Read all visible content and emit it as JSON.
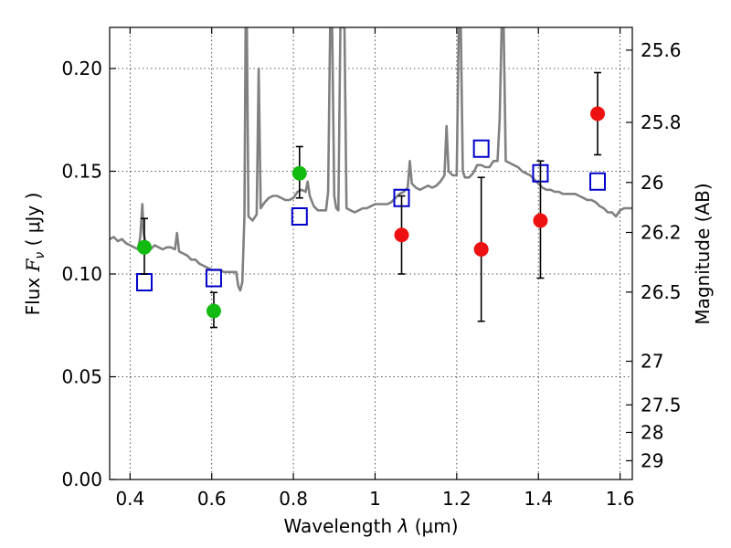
{
  "chart_data": {
    "type": "scatter",
    "xlabel_text": "Wavelength",
    "xlabel_symbol": "λ",
    "xlabel_unit": "(μm)",
    "ylabel_text": "Flux",
    "ylabel_symbol": "F",
    "ylabel_subscript": "ν",
    "ylabel_unit": "( μJy )",
    "y2label": "Magnitude (AB)",
    "xlim": [
      0.35,
      1.63
    ],
    "ylim": [
      0.0,
      0.22
    ],
    "x_ticks": [
      {
        "value": 0.4,
        "label": "0.4"
      },
      {
        "value": 0.6,
        "label": "0.6"
      },
      {
        "value": 0.8,
        "label": "0.8"
      },
      {
        "value": 1.0,
        "label": "1"
      },
      {
        "value": 1.2,
        "label": "1.2"
      },
      {
        "value": 1.4,
        "label": "1.4"
      },
      {
        "value": 1.6,
        "label": "1.6"
      }
    ],
    "y_ticks": [
      {
        "value": 0.0,
        "label": "0.00"
      },
      {
        "value": 0.05,
        "label": "0.05"
      },
      {
        "value": 0.1,
        "label": "0.10"
      },
      {
        "value": 0.15,
        "label": "0.15"
      },
      {
        "value": 0.2,
        "label": "0.20"
      }
    ],
    "y2_ticks": [
      {
        "mag": 25.6,
        "label": "25.6"
      },
      {
        "mag": 25.8,
        "label": "25.8"
      },
      {
        "mag": 26.0,
        "label": "26"
      },
      {
        "mag": 26.2,
        "label": "26.2"
      },
      {
        "mag": 26.5,
        "label": "26.5"
      },
      {
        "mag": 27.0,
        "label": "27"
      },
      {
        "mag": 27.5,
        "label": "27.5"
      },
      {
        "mag": 28.0,
        "label": "28"
      },
      {
        "mag": 29.0,
        "label": "29"
      }
    ],
    "grid": true,
    "series": [
      {
        "kind": "spectrum_line",
        "color": "#808080",
        "points": [
          [
            0.35,
            0.117
          ],
          [
            0.36,
            0.118
          ],
          [
            0.37,
            0.116
          ],
          [
            0.38,
            0.117
          ],
          [
            0.39,
            0.115
          ],
          [
            0.4,
            0.114
          ],
          [
            0.41,
            0.113
          ],
          [
            0.42,
            0.112
          ],
          [
            0.425,
            0.118
          ],
          [
            0.43,
            0.134
          ],
          [
            0.433,
            0.12
          ],
          [
            0.44,
            0.113
          ],
          [
            0.45,
            0.112
          ],
          [
            0.46,
            0.114
          ],
          [
            0.47,
            0.113
          ],
          [
            0.48,
            0.112
          ],
          [
            0.49,
            0.113
          ],
          [
            0.5,
            0.113
          ],
          [
            0.51,
            0.112
          ],
          [
            0.515,
            0.12
          ],
          [
            0.52,
            0.111
          ],
          [
            0.53,
            0.11
          ],
          [
            0.54,
            0.109
          ],
          [
            0.55,
            0.107
          ],
          [
            0.56,
            0.107
          ],
          [
            0.57,
            0.105
          ],
          [
            0.58,
            0.104
          ],
          [
            0.59,
            0.103
          ],
          [
            0.6,
            0.102
          ],
          [
            0.61,
            0.102
          ],
          [
            0.62,
            0.102
          ],
          [
            0.63,
            0.101
          ],
          [
            0.64,
            0.101
          ],
          [
            0.65,
            0.101
          ],
          [
            0.66,
            0.101
          ],
          [
            0.665,
            0.094
          ],
          [
            0.67,
            0.092
          ],
          [
            0.675,
            0.096
          ],
          [
            0.68,
            0.128
          ],
          [
            0.683,
            0.22
          ],
          [
            0.686,
            0.22
          ],
          [
            0.69,
            0.128
          ],
          [
            0.7,
            0.126
          ],
          [
            0.71,
            0.129
          ],
          [
            0.715,
            0.2
          ],
          [
            0.72,
            0.132
          ],
          [
            0.73,
            0.135
          ],
          [
            0.74,
            0.137
          ],
          [
            0.75,
            0.138
          ],
          [
            0.76,
            0.138
          ],
          [
            0.77,
            0.137
          ],
          [
            0.78,
            0.136
          ],
          [
            0.79,
            0.136
          ],
          [
            0.8,
            0.137
          ],
          [
            0.81,
            0.14
          ],
          [
            0.82,
            0.141
          ],
          [
            0.83,
            0.14
          ],
          [
            0.835,
            0.145
          ],
          [
            0.84,
            0.138
          ],
          [
            0.85,
            0.133
          ],
          [
            0.86,
            0.131
          ],
          [
            0.87,
            0.131
          ],
          [
            0.88,
            0.131
          ],
          [
            0.885,
            0.14
          ],
          [
            0.89,
            0.22
          ],
          [
            0.895,
            0.22
          ],
          [
            0.9,
            0.138
          ],
          [
            0.905,
            0.132
          ],
          [
            0.91,
            0.131
          ],
          [
            0.915,
            0.22
          ],
          [
            0.925,
            0.22
          ],
          [
            0.93,
            0.132
          ],
          [
            0.94,
            0.131
          ],
          [
            0.95,
            0.13
          ],
          [
            0.96,
            0.131
          ],
          [
            0.97,
            0.132
          ],
          [
            0.98,
            0.132
          ],
          [
            0.99,
            0.133
          ],
          [
            1.0,
            0.134
          ],
          [
            1.01,
            0.134
          ],
          [
            1.02,
            0.134
          ],
          [
            1.03,
            0.134
          ],
          [
            1.04,
            0.135
          ],
          [
            1.05,
            0.137
          ],
          [
            1.06,
            0.139
          ],
          [
            1.07,
            0.14
          ],
          [
            1.08,
            0.142
          ],
          [
            1.085,
            0.155
          ],
          [
            1.09,
            0.144
          ],
          [
            1.1,
            0.142
          ],
          [
            1.11,
            0.141
          ],
          [
            1.12,
            0.142
          ],
          [
            1.13,
            0.143
          ],
          [
            1.14,
            0.142
          ],
          [
            1.15,
            0.143
          ],
          [
            1.16,
            0.145
          ],
          [
            1.17,
            0.148
          ],
          [
            1.175,
            0.172
          ],
          [
            1.18,
            0.15
          ],
          [
            1.19,
            0.148
          ],
          [
            1.2,
            0.148
          ],
          [
            1.205,
            0.22
          ],
          [
            1.21,
            0.22
          ],
          [
            1.215,
            0.15
          ],
          [
            1.22,
            0.147
          ],
          [
            1.23,
            0.147
          ],
          [
            1.24,
            0.149
          ],
          [
            1.25,
            0.153
          ],
          [
            1.26,
            0.153
          ],
          [
            1.27,
            0.152
          ],
          [
            1.28,
            0.152
          ],
          [
            1.29,
            0.155
          ],
          [
            1.3,
            0.155
          ],
          [
            1.305,
            0.175
          ],
          [
            1.31,
            0.22
          ],
          [
            1.315,
            0.22
          ],
          [
            1.32,
            0.155
          ],
          [
            1.33,
            0.154
          ],
          [
            1.34,
            0.153
          ],
          [
            1.35,
            0.152
          ],
          [
            1.36,
            0.15
          ],
          [
            1.37,
            0.149
          ],
          [
            1.38,
            0.148
          ],
          [
            1.39,
            0.146
          ],
          [
            1.4,
            0.144
          ],
          [
            1.41,
            0.142
          ],
          [
            1.42,
            0.141
          ],
          [
            1.43,
            0.141
          ],
          [
            1.44,
            0.14
          ],
          [
            1.45,
            0.14
          ],
          [
            1.46,
            0.139
          ],
          [
            1.47,
            0.139
          ],
          [
            1.48,
            0.139
          ],
          [
            1.49,
            0.139
          ],
          [
            1.5,
            0.138
          ],
          [
            1.51,
            0.137
          ],
          [
            1.52,
            0.136
          ],
          [
            1.53,
            0.136
          ],
          [
            1.54,
            0.135
          ],
          [
            1.55,
            0.133
          ],
          [
            1.56,
            0.132
          ],
          [
            1.57,
            0.13
          ],
          [
            1.58,
            0.13
          ],
          [
            1.59,
            0.128
          ],
          [
            1.6,
            0.131
          ],
          [
            1.61,
            0.132
          ],
          [
            1.62,
            0.132
          ],
          [
            1.63,
            0.132
          ]
        ]
      },
      {
        "kind": "model_photometry",
        "marker": "open-square",
        "color": "#0000cc",
        "points": [
          [
            0.435,
            0.096
          ],
          [
            0.605,
            0.098
          ],
          [
            0.815,
            0.128
          ],
          [
            1.065,
            0.137
          ],
          [
            1.26,
            0.161
          ],
          [
            1.405,
            0.149
          ],
          [
            1.545,
            0.145
          ]
        ]
      },
      {
        "kind": "observed_optical",
        "marker": "filled-circle",
        "color": "#11bb11",
        "points": [
          {
            "x": 0.435,
            "y": 0.113,
            "yerr_low": 0.1,
            "yerr_high": 0.127
          },
          {
            "x": 0.605,
            "y": 0.082,
            "yerr_low": 0.074,
            "yerr_high": 0.091
          },
          {
            "x": 0.815,
            "y": 0.149,
            "yerr_low": 0.137,
            "yerr_high": 0.162
          }
        ]
      },
      {
        "kind": "observed_nir",
        "marker": "filled-circle",
        "color": "#ee1111",
        "points": [
          {
            "x": 1.065,
            "y": 0.119,
            "yerr_low": 0.1,
            "yerr_high": 0.138
          },
          {
            "x": 1.26,
            "y": 0.112,
            "yerr_low": 0.077,
            "yerr_high": 0.147
          },
          {
            "x": 1.405,
            "y": 0.126,
            "yerr_low": 0.098,
            "yerr_high": 0.155
          },
          {
            "x": 1.545,
            "y": 0.178,
            "yerr_low": 0.158,
            "yerr_high": 0.198
          }
        ]
      }
    ]
  }
}
